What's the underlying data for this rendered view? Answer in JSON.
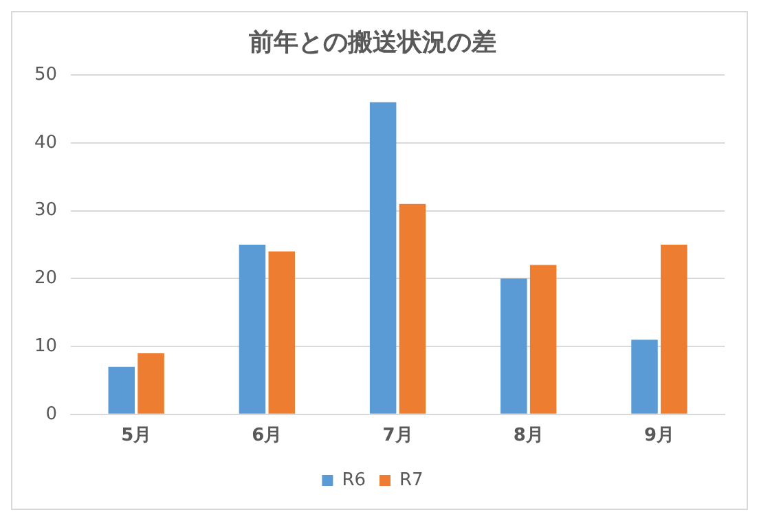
{
  "chart_data": {
    "type": "bar",
    "title": "前年との搬送状況の差",
    "categories": [
      "5月",
      "6月",
      "7月",
      "8月",
      "9月"
    ],
    "series": [
      {
        "name": "R6",
        "color": "#5b9bd5",
        "values": [
          7,
          25,
          46,
          20,
          11
        ]
      },
      {
        "name": "R7",
        "color": "#ed7d31",
        "values": [
          9,
          24,
          31,
          22,
          25
        ]
      }
    ],
    "ylim": [
      0,
      50
    ],
    "yticks": [
      0,
      10,
      20,
      30,
      40,
      50
    ],
    "grid": "y",
    "legend": "bottom"
  }
}
